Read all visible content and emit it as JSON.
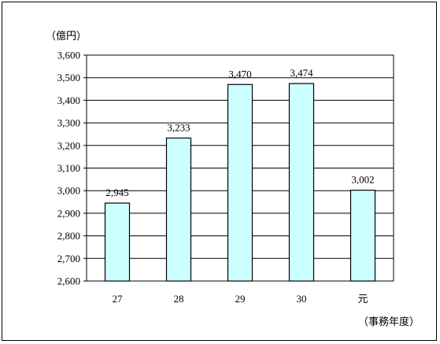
{
  "chart_data": {
    "type": "bar",
    "categories": [
      "27",
      "28",
      "29",
      "30",
      "元"
    ],
    "values": [
      2945,
      3233,
      3470,
      3474,
      3002
    ],
    "value_labels": [
      "2,945",
      "3,233",
      "3,470",
      "3,474",
      "3,002"
    ],
    "y_unit_label": "（億円）",
    "x_unit_label": "（事務年度）",
    "ylim": [
      2600,
      3600
    ],
    "y_ticks": [
      2600,
      2700,
      2800,
      2900,
      3000,
      3100,
      3200,
      3300,
      3400,
      3500,
      3600
    ],
    "y_tick_labels": [
      "2,600",
      "2,700",
      "2,800",
      "2,900",
      "3,000",
      "3,100",
      "3,200",
      "3,300",
      "3,400",
      "3,500",
      "3,600"
    ],
    "grid": true,
    "legend": "none",
    "colors": {
      "bar_fill": "#CCFFFF",
      "bar_stroke": "#000000",
      "grid": "#000000",
      "frame": "#000000"
    }
  }
}
